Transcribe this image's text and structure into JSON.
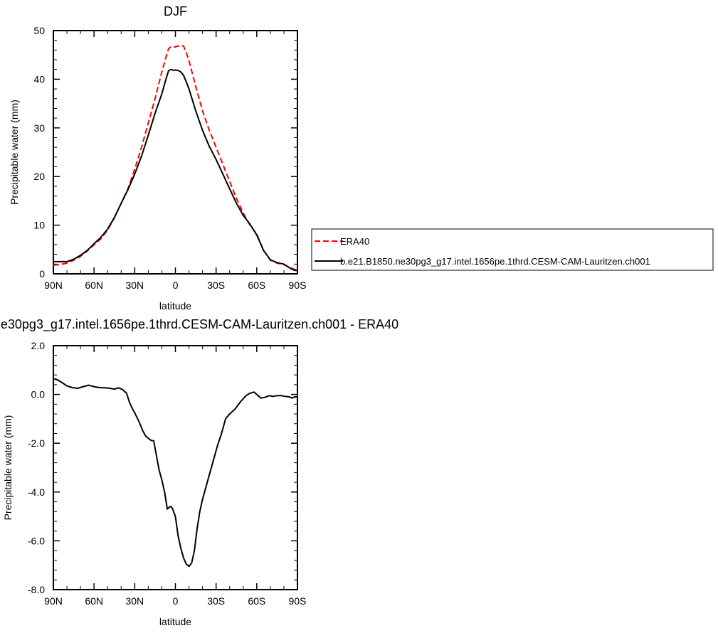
{
  "chart_data": [
    {
      "type": "line",
      "title": "DJF",
      "xlabel": "latitude",
      "ylabel": "Precipitable water (mm)",
      "xlim": [
        90,
        -90
      ],
      "ylim": [
        0,
        50
      ],
      "x_ticks": [
        90,
        60,
        30,
        0,
        -30,
        -60,
        -90
      ],
      "x_tick_labels": [
        "90N",
        "60N",
        "30N",
        "0",
        "30S",
        "60S",
        "90S"
      ],
      "y_ticks": [
        0,
        10,
        20,
        30,
        40,
        50
      ],
      "y_tick_labels": [
        "0",
        "10",
        "20",
        "30",
        "40",
        "50"
      ],
      "legend_position": "right",
      "series": [
        {
          "name": "ERA40",
          "color": "#ff0000",
          "dash": "dashed",
          "x": [
            90,
            85,
            80,
            75,
            70,
            65,
            60,
            55,
            50,
            45,
            40,
            35,
            30,
            25,
            20,
            15,
            10,
            7,
            5,
            3,
            1,
            0,
            -2,
            -4,
            -6,
            -8,
            -10,
            -15,
            -20,
            -25,
            -30,
            -35,
            -40,
            -45,
            -50,
            -55,
            -60,
            -65,
            -70,
            -75,
            -80,
            -85,
            -88,
            -90
          ],
          "y": [
            1.8,
            1.9,
            2.2,
            2.8,
            3.6,
            4.7,
            6.0,
            7.2,
            9.0,
            11.5,
            14.5,
            17.5,
            21.5,
            26.0,
            31.0,
            36.0,
            41.5,
            44.5,
            46.3,
            46.7,
            46.6,
            46.7,
            46.8,
            47.0,
            46.8,
            45.5,
            43.8,
            38.5,
            33.5,
            29.5,
            26.0,
            22.5,
            19.0,
            15.5,
            12.5,
            10.0,
            8.2,
            4.8,
            2.8,
            2.2,
            1.9,
            1.2,
            0.9,
            0.8
          ]
        },
        {
          "name": "b.e21.B1850.ne30pg3_g17.intel.1656pe.1thrd.CESM-CAM-Lauritzen.ch001",
          "color": "#000000",
          "dash": "solid",
          "x": [
            90,
            85,
            80,
            75,
            70,
            65,
            60,
            55,
            50,
            45,
            40,
            35,
            30,
            25,
            20,
            15,
            10,
            7,
            5,
            3,
            1,
            0,
            -2,
            -4,
            -6,
            -8,
            -10,
            -15,
            -20,
            -25,
            -30,
            -35,
            -40,
            -45,
            -50,
            -55,
            -60,
            -65,
            -70,
            -75,
            -80,
            -85,
            -88,
            -90
          ],
          "y": [
            2.5,
            2.5,
            2.5,
            3.0,
            3.8,
            4.8,
            6.2,
            7.5,
            9.2,
            11.6,
            14.5,
            17.3,
            20.5,
            24.2,
            28.5,
            33.0,
            37.0,
            40.0,
            41.8,
            42.0,
            41.8,
            41.9,
            41.8,
            41.5,
            40.8,
            39.5,
            38.0,
            33.5,
            29.5,
            26.2,
            23.5,
            20.5,
            17.5,
            14.5,
            12.0,
            10.2,
            8.0,
            4.8,
            2.9,
            2.3,
            2.0,
            1.1,
            0.7,
            0.7
          ]
        }
      ]
    },
    {
      "type": "line",
      "title": "e30pg3_g17.intel.1656pe.1thrd.CESM-CAM-Lauritzen.ch001 - ERA40",
      "xlabel": "latitude",
      "ylabel": "Precipitable water (mm)",
      "xlim": [
        90,
        -90
      ],
      "ylim": [
        -8,
        2
      ],
      "x_ticks": [
        90,
        60,
        30,
        0,
        -30,
        -60,
        -90
      ],
      "x_tick_labels": [
        "90N",
        "60N",
        "30N",
        "0",
        "30S",
        "60S",
        "90S"
      ],
      "y_ticks": [
        2,
        0,
        -2,
        -4,
        -6,
        -8
      ],
      "y_tick_labels": [
        "2.0",
        "0.0",
        "-2.0",
        "-4.0",
        "-6.0",
        "-8.0"
      ],
      "series": [
        {
          "color": "#000000",
          "dash": "solid",
          "x": [
            90,
            87,
            84,
            80,
            76,
            72,
            68,
            64,
            60,
            56,
            52,
            48,
            45,
            42,
            39,
            36,
            34,
            32,
            30,
            27,
            24,
            22,
            20,
            18,
            16,
            14,
            12,
            10,
            8,
            6,
            4,
            3,
            2,
            0,
            -2,
            -4,
            -6,
            -8,
            -10,
            -12,
            -14,
            -16,
            -18,
            -20,
            -22,
            -25,
            -28,
            -31,
            -34,
            -37,
            -40,
            -44,
            -48,
            -52,
            -55,
            -58,
            -61,
            -63,
            -66,
            -69,
            -72,
            -75,
            -78,
            -81,
            -84,
            -86,
            -88,
            -90
          ],
          "y": [
            0.65,
            0.6,
            0.5,
            0.35,
            0.28,
            0.25,
            0.32,
            0.38,
            0.32,
            0.28,
            0.27,
            0.25,
            0.22,
            0.27,
            0.2,
            0.05,
            -0.3,
            -0.55,
            -0.75,
            -1.1,
            -1.5,
            -1.7,
            -1.8,
            -1.88,
            -1.9,
            -2.5,
            -3.1,
            -3.5,
            -4.0,
            -4.7,
            -4.6,
            -4.6,
            -4.7,
            -5.0,
            -5.8,
            -6.3,
            -6.7,
            -6.95,
            -7.05,
            -6.9,
            -6.4,
            -5.5,
            -4.8,
            -4.3,
            -3.9,
            -3.3,
            -2.7,
            -2.1,
            -1.6,
            -1.0,
            -0.8,
            -0.6,
            -0.3,
            -0.05,
            0.05,
            0.1,
            -0.05,
            -0.15,
            -0.12,
            -0.05,
            -0.08,
            -0.05,
            -0.05,
            -0.08,
            -0.1,
            -0.15,
            -0.1,
            -0.1
          ]
        }
      ]
    }
  ]
}
